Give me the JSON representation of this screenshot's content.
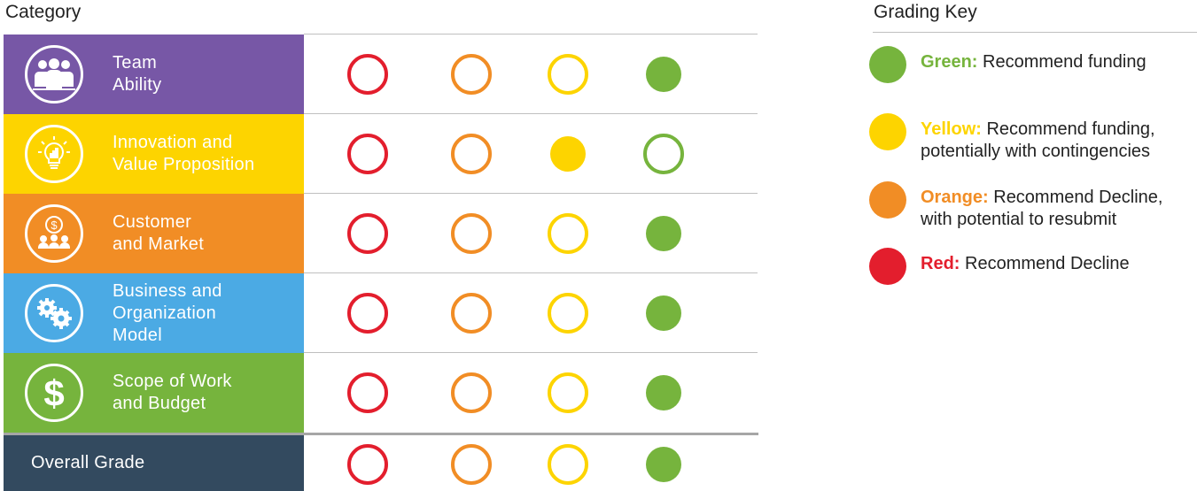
{
  "header": {
    "category": "Category"
  },
  "colors": {
    "red": "#e31e2d",
    "orange": "#f18d25",
    "yellow": "#fdd400",
    "green": "#76b43d",
    "team": "#7757a6",
    "innovation": "#fdd400",
    "customer": "#f18d25",
    "business": "#4baae4",
    "scope": "#76b43d",
    "overall": "#334a5f"
  },
  "rows": [
    {
      "label": "Team\nAbility",
      "icon": "team-icon",
      "bg": "#7757a6",
      "grades": [
        "outline",
        "outline",
        "outline",
        "filled"
      ]
    },
    {
      "label": "Innovation and\nValue Proposition",
      "icon": "lightbulb-icon",
      "bg": "#fdd400",
      "grades": [
        "outline",
        "outline",
        "filled",
        "outline"
      ]
    },
    {
      "label": "Customer\nand Market",
      "icon": "customer-money-icon",
      "bg": "#f18d25",
      "grades": [
        "outline",
        "outline",
        "outline",
        "filled"
      ]
    },
    {
      "label": "Business and\nOrganization\nModel",
      "icon": "gears-icon",
      "bg": "#4baae4",
      "grades": [
        "outline",
        "outline",
        "outline",
        "filled"
      ]
    },
    {
      "label": "Scope of Work\nand Budget",
      "icon": "dollar-icon",
      "bg": "#76b43d",
      "grades": [
        "outline",
        "outline",
        "outline",
        "filled"
      ]
    }
  ],
  "overall": {
    "label": "Overall Grade",
    "grades": [
      "outline",
      "outline",
      "outline",
      "filled"
    ]
  },
  "grade_columns": [
    "red",
    "orange",
    "yellow",
    "green"
  ],
  "key": {
    "title": "Grading Key",
    "items": [
      {
        "color": "green",
        "name": "Green:",
        "text": "Recommend funding"
      },
      {
        "color": "yellow",
        "name": "Yellow:",
        "text": "Recommend funding,\npotentially with contingencies"
      },
      {
        "color": "orange",
        "name": "Orange:",
        "text": "Recommend Decline,\nwith potential to resubmit"
      },
      {
        "color": "red",
        "name": "Red:",
        "text": "Recommend Decline"
      }
    ]
  }
}
